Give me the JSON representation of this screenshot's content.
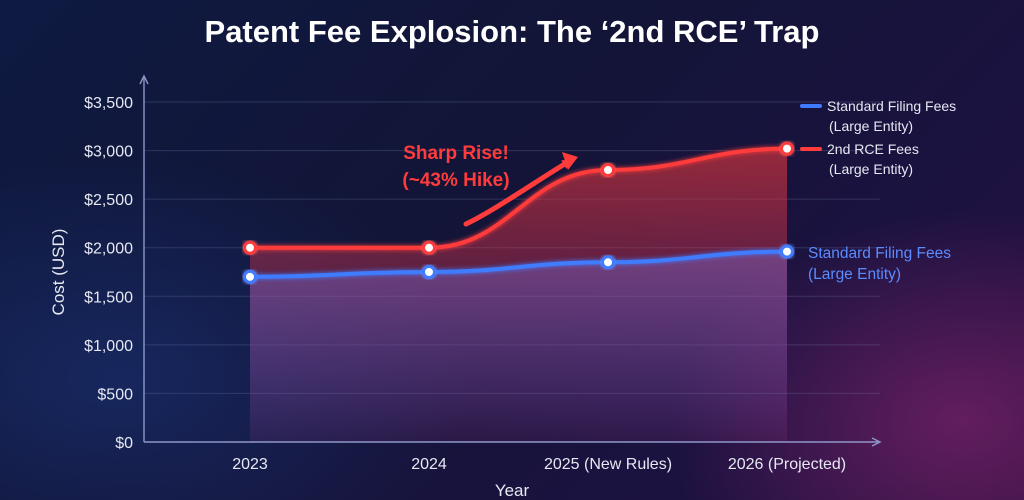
{
  "chart_data": {
    "type": "line",
    "title": "Patent Fee Explosion: The ‘2nd RCE’ Trap",
    "xlabel": "Year",
    "ylabel": "Cost (USD)",
    "categories": [
      "2023",
      "2024",
      "2025 (New Rules)",
      "2026 (Projected)"
    ],
    "yticks": [
      "$0",
      "$500",
      "$1,000",
      "$1,500",
      "$2,000",
      "$2,500",
      "$3,000",
      "$3,500"
    ],
    "ylim": [
      0,
      3500
    ],
    "grid": true,
    "legend_position": "top-right",
    "series": [
      {
        "name": "Standard Filing Fees (Large Entity)",
        "legend_lines": [
          "Standard Filing Fees",
          "(Large Entity)"
        ],
        "values": [
          1700,
          1750,
          1850,
          1960
        ],
        "color": "#3f7bff",
        "area": true
      },
      {
        "name": "2nd RCE Fees (Large Entity)",
        "legend_lines": [
          "2nd RCE Fees",
          "(Large Entity)"
        ],
        "values": [
          2000,
          2000,
          2800,
          3020
        ],
        "color": "#ff3b3b",
        "area": true
      }
    ],
    "annotations": [
      {
        "lines": [
          "Sharp Rise!",
          "(~43% Hike)"
        ],
        "color": "#ff3b3b",
        "arrow": true
      }
    ],
    "end_label": {
      "series_index": 0,
      "lines": [
        "Standard Filing Fees",
        "(Large Entity)"
      ]
    }
  }
}
